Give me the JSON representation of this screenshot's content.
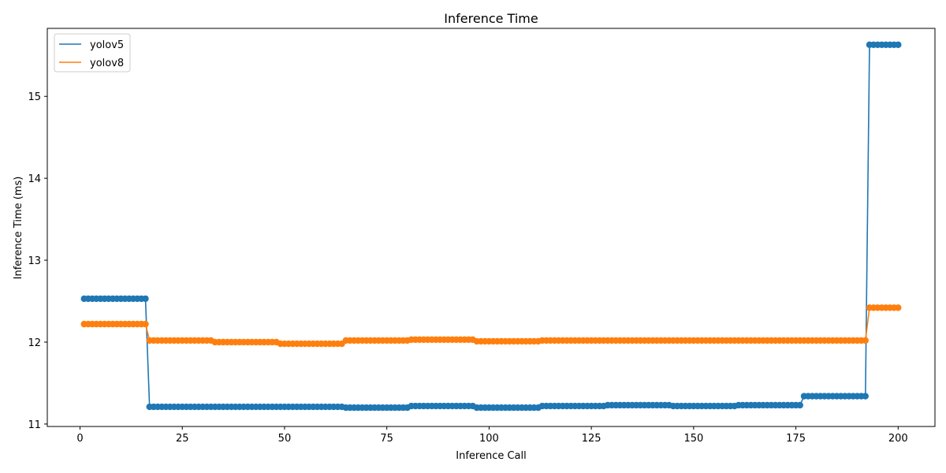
{
  "chart_data": {
    "type": "line",
    "title": "Inference Time",
    "xlabel": "Inference Call",
    "ylabel": "Inference Time (ms)",
    "xlim": [
      -8,
      209
    ],
    "ylim": [
      10.97,
      15.83
    ],
    "x_ticks": [
      0,
      25,
      50,
      75,
      100,
      125,
      150,
      175,
      200
    ],
    "y_ticks": [
      11,
      12,
      13,
      14,
      15
    ],
    "grid": false,
    "legend_position": "top-left",
    "markers": true,
    "series": [
      {
        "name": "yolov5",
        "color": "#1f77b4",
        "segments": [
          {
            "from": 1,
            "to": 16,
            "value": 12.53
          },
          {
            "from": 17,
            "to": 64,
            "value": 11.21
          },
          {
            "from": 65,
            "to": 80,
            "value": 11.2
          },
          {
            "from": 81,
            "to": 96,
            "value": 11.22
          },
          {
            "from": 97,
            "to": 112,
            "value": 11.2
          },
          {
            "from": 113,
            "to": 128,
            "value": 11.22
          },
          {
            "from": 129,
            "to": 144,
            "value": 11.23
          },
          {
            "from": 145,
            "to": 160,
            "value": 11.22
          },
          {
            "from": 161,
            "to": 176,
            "value": 11.23
          },
          {
            "from": 177,
            "to": 192,
            "value": 11.34
          },
          {
            "from": 193,
            "to": 200,
            "value": 15.63
          }
        ]
      },
      {
        "name": "yolov8",
        "color": "#ff7f0e",
        "segments": [
          {
            "from": 1,
            "to": 16,
            "value": 12.22
          },
          {
            "from": 17,
            "to": 32,
            "value": 12.02
          },
          {
            "from": 33,
            "to": 48,
            "value": 12.0
          },
          {
            "from": 49,
            "to": 64,
            "value": 11.98
          },
          {
            "from": 65,
            "to": 80,
            "value": 12.02
          },
          {
            "from": 81,
            "to": 96,
            "value": 12.03
          },
          {
            "from": 97,
            "to": 112,
            "value": 12.01
          },
          {
            "from": 113,
            "to": 192,
            "value": 12.02
          },
          {
            "from": 193,
            "to": 200,
            "value": 12.42
          }
        ]
      }
    ]
  }
}
